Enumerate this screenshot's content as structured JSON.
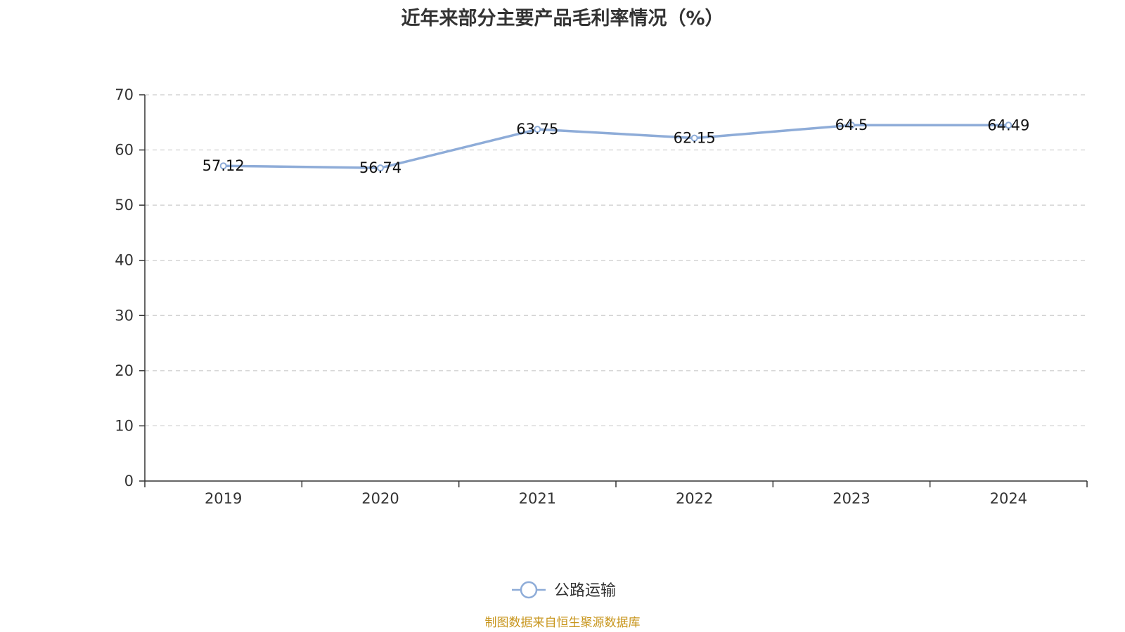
{
  "title": "近年来部分主要产品毛利率情况（%）",
  "source": "制图数据来自恒生聚源数据库",
  "colors": {
    "series": "#8eacd8",
    "axis": "#333333",
    "grid": "#cccccc",
    "source": "#c8961e"
  },
  "chart_data": {
    "type": "line",
    "title": "近年来部分主要产品毛利率情况（%）",
    "categories": [
      "2019",
      "2020",
      "2021",
      "2022",
      "2023",
      "2024"
    ],
    "series": [
      {
        "name": "公路运输",
        "values": [
          57.12,
          56.74,
          63.75,
          62.15,
          64.5,
          64.49
        ],
        "labels": [
          "57.12",
          "56.74",
          "63.75",
          "62.15",
          "64.5",
          "64.49"
        ]
      }
    ],
    "yticks": [
      "0",
      "10",
      "20",
      "30",
      "40",
      "50",
      "60",
      "70"
    ],
    "ylim": [
      0,
      70
    ],
    "ystep": 10,
    "xlabel": "",
    "ylabel": "",
    "grid": true,
    "legend": "bottom-center"
  }
}
